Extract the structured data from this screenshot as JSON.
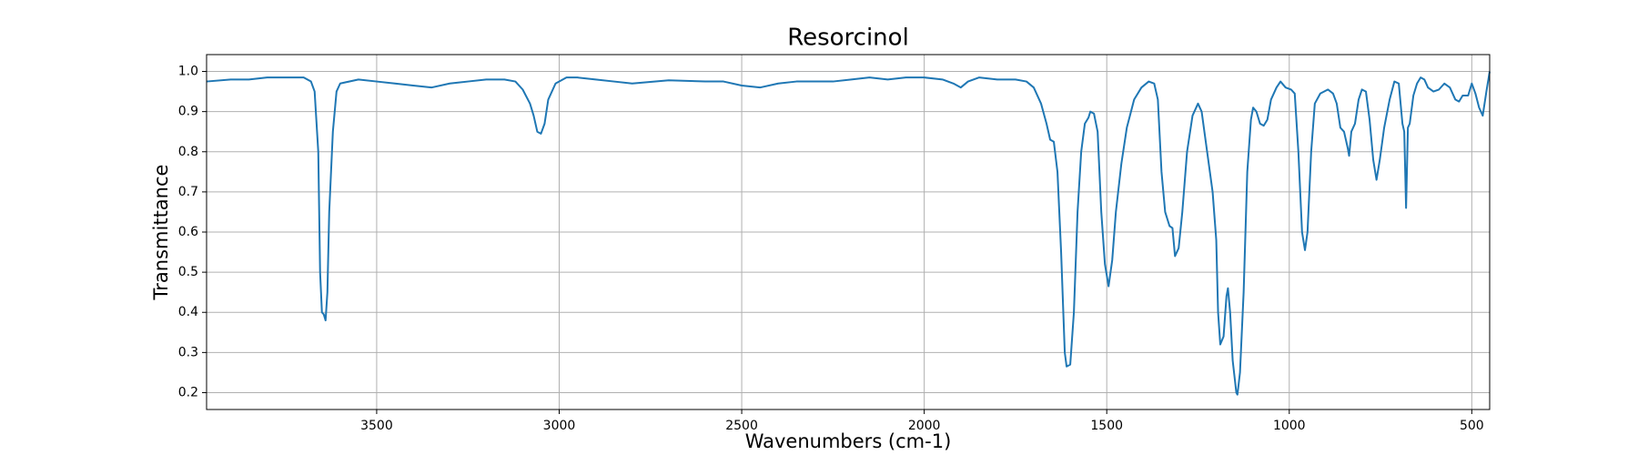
{
  "chart_data": {
    "type": "line",
    "title": "Resorcinol",
    "xlabel": "Wavenumbers (cm-1)",
    "ylabel": "Transmittance",
    "xlim": [
      3966,
      451
    ],
    "ylim": [
      0.158,
      1.042
    ],
    "xticks": [
      3500,
      3000,
      2500,
      2000,
      1500,
      1000,
      500
    ],
    "yticks": [
      0.2,
      0.3,
      0.4,
      0.5,
      0.6,
      0.7,
      0.8,
      0.9,
      {
        "value": 1,
        "label": "1.0"
      }
    ],
    "grid": true,
    "color": "#1f77b4",
    "x": [
      3966,
      3900,
      3850,
      3800,
      3750,
      3700,
      3680,
      3670,
      3660,
      3655,
      3650,
      3645,
      3640,
      3635,
      3630,
      3620,
      3610,
      3600,
      3550,
      3500,
      3450,
      3400,
      3350,
      3300,
      3250,
      3200,
      3150,
      3120,
      3100,
      3080,
      3070,
      3060,
      3050,
      3040,
      3030,
      3010,
      2980,
      2950,
      2900,
      2850,
      2800,
      2700,
      2600,
      2550,
      2500,
      2450,
      2400,
      2350,
      2300,
      2250,
      2200,
      2150,
      2100,
      2050,
      2000,
      1950,
      1920,
      1900,
      1880,
      1850,
      1800,
      1750,
      1720,
      1700,
      1680,
      1665,
      1655,
      1645,
      1635,
      1625,
      1615,
      1610,
      1600,
      1590,
      1580,
      1570,
      1560,
      1550,
      1545,
      1535,
      1525,
      1515,
      1505,
      1495,
      1485,
      1475,
      1460,
      1445,
      1425,
      1405,
      1385,
      1370,
      1360,
      1350,
      1340,
      1328,
      1320,
      1313,
      1303,
      1293,
      1280,
      1265,
      1250,
      1240,
      1225,
      1210,
      1200,
      1195,
      1189,
      1180,
      1172,
      1168,
      1162,
      1155,
      1145,
      1142,
      1135,
      1125,
      1115,
      1105,
      1099,
      1090,
      1080,
      1070,
      1060,
      1050,
      1035,
      1024,
      1010,
      995,
      985,
      975,
      965,
      957,
      950,
      940,
      930,
      915,
      894,
      880,
      870,
      860,
      850,
      840,
      836,
      830,
      820,
      810,
      801,
      790,
      780,
      770,
      761,
      752,
      740,
      725,
      712,
      700,
      690,
      685,
      680,
      675,
      670,
      660,
      650,
      640,
      630,
      620,
      605,
      590,
      575,
      560,
      545,
      535,
      525,
      510,
      500,
      490,
      480,
      470,
      460,
      451
    ],
    "values": [
      0.975,
      0.98,
      0.98,
      0.985,
      0.985,
      0.985,
      0.975,
      0.95,
      0.8,
      0.5,
      0.4,
      0.395,
      0.38,
      0.45,
      0.65,
      0.85,
      0.95,
      0.97,
      0.98,
      0.975,
      0.97,
      0.965,
      0.96,
      0.97,
      0.975,
      0.98,
      0.98,
      0.975,
      0.955,
      0.92,
      0.89,
      0.85,
      0.845,
      0.87,
      0.93,
      0.97,
      0.985,
      0.985,
      0.98,
      0.975,
      0.97,
      0.978,
      0.975,
      0.975,
      0.965,
      0.96,
      0.97,
      0.975,
      0.975,
      0.975,
      0.98,
      0.985,
      0.98,
      0.985,
      0.985,
      0.98,
      0.97,
      0.96,
      0.975,
      0.985,
      0.98,
      0.98,
      0.975,
      0.96,
      0.92,
      0.87,
      0.83,
      0.825,
      0.75,
      0.55,
      0.3,
      0.265,
      0.27,
      0.4,
      0.65,
      0.8,
      0.87,
      0.885,
      0.9,
      0.895,
      0.85,
      0.65,
      0.52,
      0.465,
      0.53,
      0.65,
      0.77,
      0.86,
      0.93,
      0.96,
      0.975,
      0.97,
      0.93,
      0.75,
      0.65,
      0.615,
      0.61,
      0.54,
      0.56,
      0.65,
      0.8,
      0.89,
      0.92,
      0.9,
      0.8,
      0.7,
      0.58,
      0.4,
      0.32,
      0.34,
      0.44,
      0.46,
      0.4,
      0.28,
      0.2,
      0.195,
      0.25,
      0.45,
      0.75,
      0.88,
      0.91,
      0.9,
      0.87,
      0.865,
      0.88,
      0.93,
      0.96,
      0.975,
      0.96,
      0.955,
      0.945,
      0.8,
      0.6,
      0.555,
      0.6,
      0.8,
      0.92,
      0.945,
      0.955,
      0.945,
      0.92,
      0.86,
      0.85,
      0.81,
      0.79,
      0.85,
      0.87,
      0.93,
      0.955,
      0.95,
      0.88,
      0.78,
      0.73,
      0.78,
      0.86,
      0.93,
      0.975,
      0.97,
      0.87,
      0.85,
      0.66,
      0.86,
      0.87,
      0.94,
      0.97,
      0.985,
      0.98,
      0.96,
      0.95,
      0.955,
      0.97,
      0.96,
      0.93,
      0.925,
      0.94,
      0.94,
      0.97,
      0.945,
      0.91,
      0.89,
      0.95,
      1.0
    ]
  }
}
